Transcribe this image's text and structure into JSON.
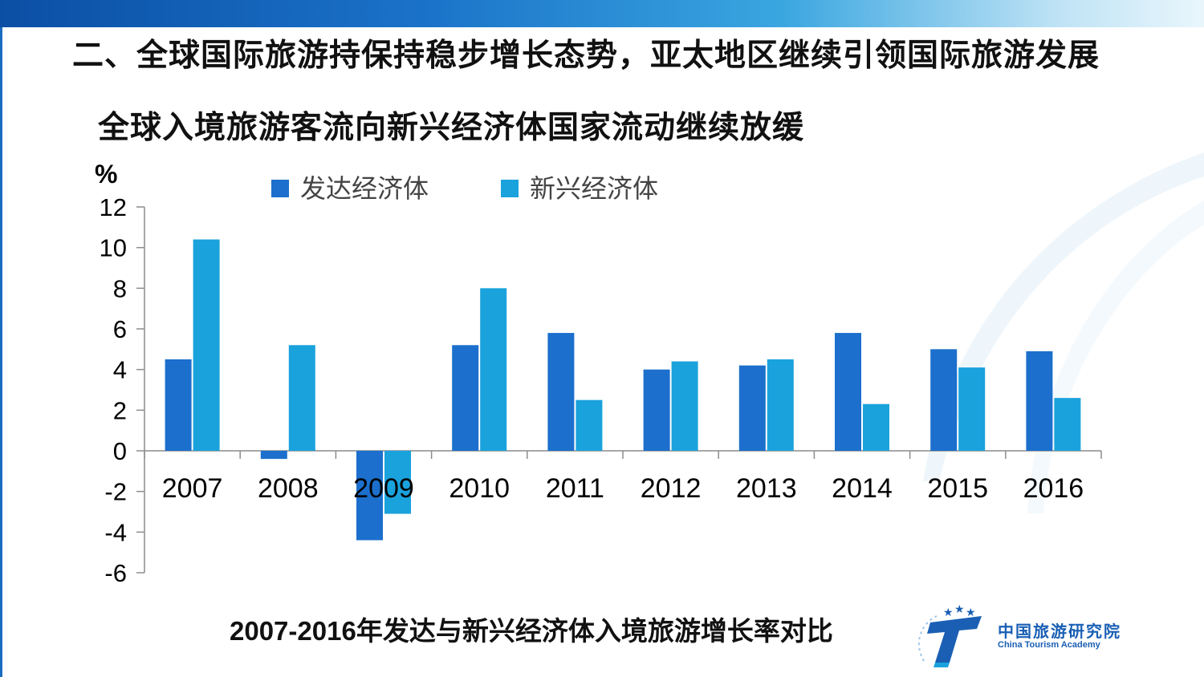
{
  "slide_title": "二、全球国际旅游持保持稳步增长态势，亚太地区继续引领国际旅游发展",
  "chart_title": "全球入境旅游客流向新兴经济体国家流动继续放缓",
  "caption": "2007-2016年发达与新兴经济体入境旅游增长率对比",
  "logo": {
    "cn": "中国旅游研究院",
    "en": "China Tourism Academy",
    "icon": "cta-star-t-icon"
  },
  "colors": {
    "developed": "#1c6fcc",
    "emerging": "#1aa2dc",
    "axis": "#8c8c8c"
  },
  "chart_data": {
    "type": "bar",
    "unit_label": "%",
    "categories": [
      "2007",
      "2008",
      "2009",
      "2010",
      "2011",
      "2012",
      "2013",
      "2014",
      "2015",
      "2016"
    ],
    "series": [
      {
        "name": "发达经济体",
        "values": [
          4.5,
          -0.4,
          -4.4,
          5.2,
          5.8,
          4.0,
          4.2,
          5.8,
          5.0,
          4.9
        ]
      },
      {
        "name": "新兴经济体",
        "values": [
          10.4,
          5.2,
          -3.1,
          8.0,
          2.5,
          4.4,
          4.5,
          2.3,
          4.1,
          2.6
        ]
      }
    ],
    "ylim": [
      -6,
      12
    ],
    "yticks": [
      12,
      10,
      8,
      6,
      4,
      2,
      0,
      -2,
      -4,
      -6
    ],
    "legend": "top"
  }
}
